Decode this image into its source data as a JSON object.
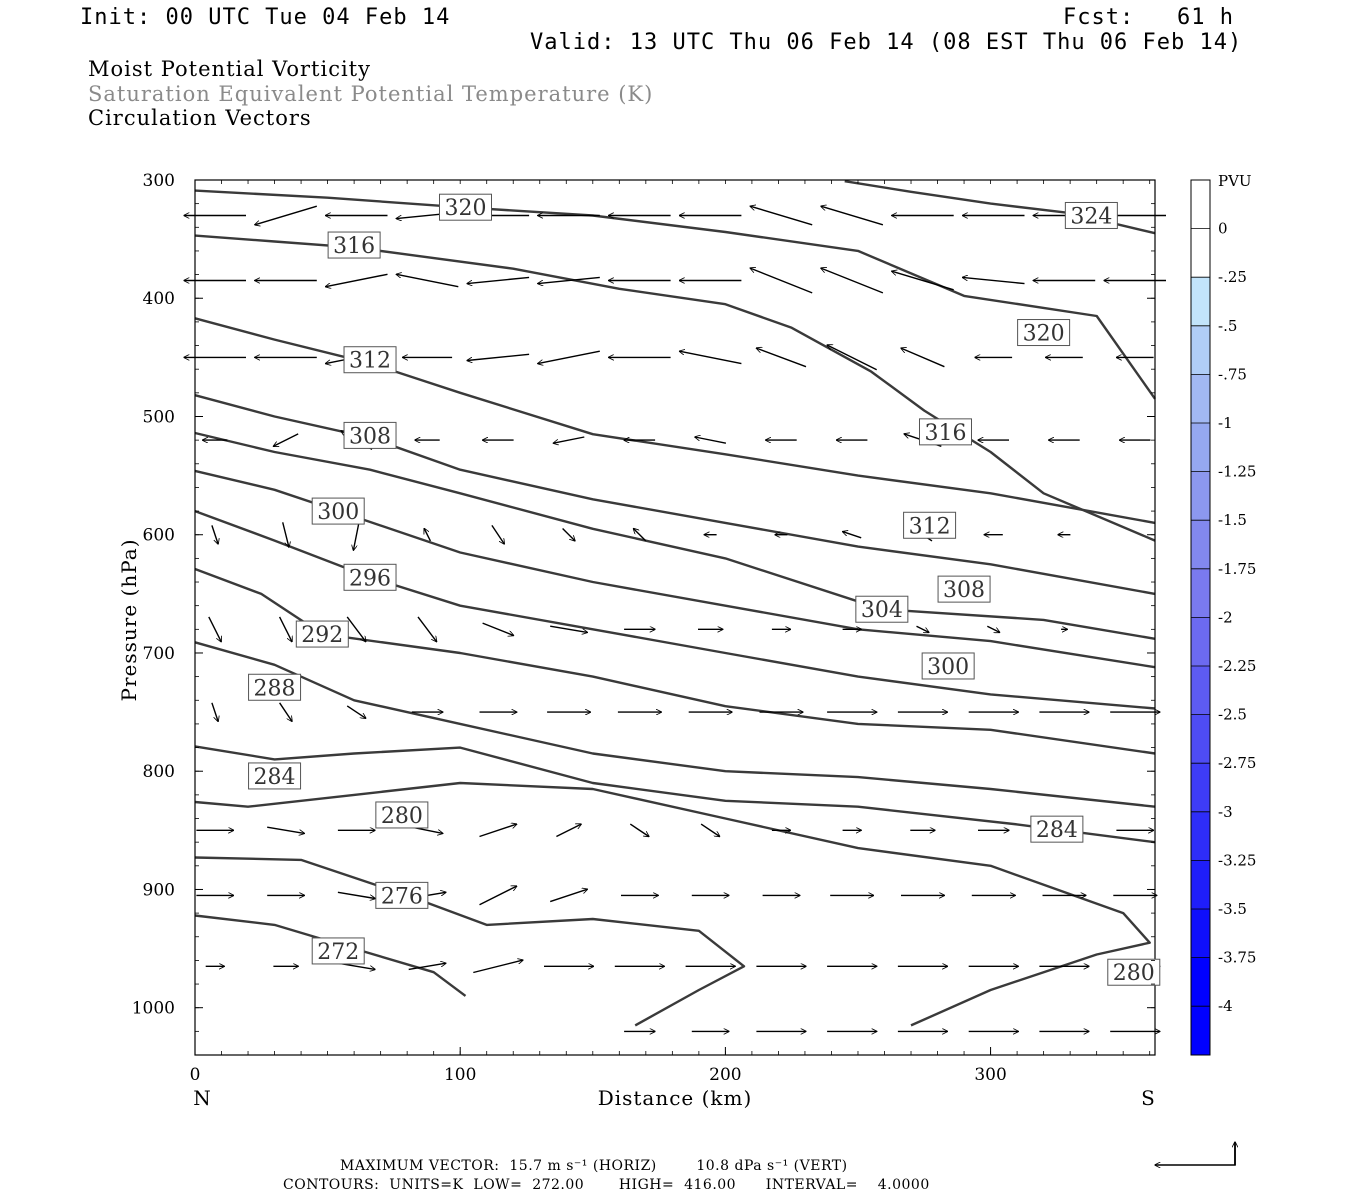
{
  "header": {
    "init": "Init: 00 UTC Tue 04 Feb 14",
    "fcst": "Fcst:   61 h",
    "valid": "Valid: 13 UTC Thu 06 Feb 14 (08 EST Thu 06 Feb 14)",
    "fields": [
      "Moist Potential Vorticity",
      "Saturation Equivalent Potential Temperature (K)",
      "Circulation Vectors"
    ]
  },
  "footer": {
    "max_vector": "MAXIMUM VECTOR:  15.7 m s⁻¹ (HORIZ)        10.8 dPa s⁻¹ (VERT)",
    "contours": "CONTOURS:  UNITS=K  LOW=  272.00       HIGH=  416.00      INTERVAL=    4.0000"
  },
  "colors": {
    "contour": "#3a3a3a",
    "colorbar": [
      "#ffffff",
      "#ffffff",
      "#c2e4fb",
      "#b0cdf7",
      "#a2b8f3",
      "#95a8f0",
      "#8c98ef",
      "#8288ee",
      "#7a7aef",
      "#6c6af0",
      "#5d5bf2",
      "#4e4cf4",
      "#3e3cf6",
      "#2e2df8",
      "#1f1efa",
      "#0f0ffc",
      "#0000ff"
    ]
  },
  "chart_data": {
    "type": "contour",
    "xlabel": "Distance (km)",
    "ylabel": "Pressure (hPa)",
    "x_ticks": [
      "0",
      "100",
      "200",
      "300"
    ],
    "x_tick_values": [
      0,
      100,
      200,
      300
    ],
    "xlim": [
      0,
      362
    ],
    "y_ticks": [
      "300",
      "400",
      "500",
      "600",
      "700",
      "800",
      "900",
      "1000"
    ],
    "y_tick_values": [
      300,
      400,
      500,
      600,
      700,
      800,
      900,
      1000
    ],
    "ylim": [
      300,
      1040
    ],
    "left_end_label": "N",
    "right_end_label": "S",
    "colorbar": {
      "unit": "PVU",
      "labels": [
        "0",
        "-.25",
        "-.5",
        "-.75",
        "-1",
        "-1.25",
        "-1.5",
        "-1.75",
        "-2",
        "-2.25",
        "-2.5",
        "-2.75",
        "-3",
        "-3.25",
        "-3.5",
        "-3.75",
        "-4"
      ]
    },
    "contours": [
      {
        "label": "324",
        "label_at": [
          338,
          330
        ],
        "points": [
          [
            245,
            301
          ],
          [
            270,
            310
          ],
          [
            300,
            320
          ],
          [
            330,
            328
          ],
          [
            362,
            345
          ]
        ]
      },
      {
        "label": "320",
        "label_at": [
          102,
          323
        ],
        "points": [
          [
            0,
            309
          ],
          [
            50,
            315
          ],
          [
            100,
            323
          ],
          [
            150,
            330
          ],
          [
            200,
            344
          ],
          [
            250,
            360
          ],
          [
            290,
            398
          ],
          [
            340,
            415
          ],
          [
            362,
            485
          ]
        ]
      },
      {
        "label": "320",
        "label_at": [
          320,
          429
        ],
        "points": []
      },
      {
        "label": "316",
        "label_at": [
          60,
          355
        ],
        "points": [
          [
            0,
            347
          ],
          [
            30,
            352
          ],
          [
            60,
            357
          ],
          [
            120,
            375
          ],
          [
            160,
            392
          ],
          [
            200,
            405
          ],
          [
            225,
            425
          ],
          [
            255,
            462
          ],
          [
            275,
            495
          ],
          [
            300,
            530
          ],
          [
            320,
            565
          ],
          [
            362,
            605
          ]
        ]
      },
      {
        "label": "316",
        "label_at": [
          283,
          513
        ],
        "points": []
      },
      {
        "label": "312",
        "label_at": [
          66,
          452
        ],
        "points": [
          [
            0,
            417
          ],
          [
            30,
            435
          ],
          [
            66,
            455
          ],
          [
            100,
            480
          ],
          [
            150,
            515
          ],
          [
            200,
            532
          ],
          [
            250,
            550
          ],
          [
            300,
            565
          ],
          [
            362,
            590
          ]
        ]
      },
      {
        "label": "312",
        "label_at": [
          277,
          592
        ],
        "points": []
      },
      {
        "label": "308",
        "label_at": [
          66,
          516
        ],
        "points": [
          [
            0,
            482
          ],
          [
            30,
            500
          ],
          [
            66,
            518
          ],
          [
            100,
            545
          ],
          [
            150,
            570
          ],
          [
            200,
            590
          ],
          [
            250,
            610
          ],
          [
            300,
            625
          ],
          [
            362,
            650
          ]
        ]
      },
      {
        "label": "308",
        "label_at": [
          290,
          646
        ],
        "points": []
      },
      {
        "label": "304",
        "label_at": [
          259,
          663
        ],
        "points": [
          [
            0,
            514
          ],
          [
            30,
            530
          ],
          [
            66,
            545
          ],
          [
            100,
            565
          ],
          [
            150,
            595
          ],
          [
            200,
            620
          ],
          [
            259,
            663
          ],
          [
            320,
            672
          ],
          [
            362,
            688
          ]
        ]
      },
      {
        "label": "300",
        "label_at": [
          54,
          580
        ],
        "points": [
          [
            0,
            546
          ],
          [
            30,
            562
          ],
          [
            54,
            580
          ],
          [
            100,
            615
          ],
          [
            150,
            640
          ],
          [
            200,
            660
          ],
          [
            250,
            680
          ],
          [
            300,
            690
          ],
          [
            362,
            712
          ]
        ]
      },
      {
        "label": "300",
        "label_at": [
          284,
          711
        ],
        "points": []
      },
      {
        "label": "296",
        "label_at": [
          66,
          636
        ],
        "points": [
          [
            0,
            580
          ],
          [
            30,
            605
          ],
          [
            66,
            636
          ],
          [
            100,
            660
          ],
          [
            150,
            680
          ],
          [
            200,
            700
          ],
          [
            250,
            720
          ],
          [
            300,
            735
          ],
          [
            362,
            747
          ]
        ]
      },
      {
        "label": "292",
        "label_at": [
          48,
          684
        ],
        "points": [
          [
            0,
            629
          ],
          [
            25,
            650
          ],
          [
            48,
            684
          ],
          [
            100,
            700
          ],
          [
            150,
            720
          ],
          [
            200,
            745
          ],
          [
            250,
            760
          ],
          [
            300,
            765
          ],
          [
            362,
            785
          ]
        ]
      },
      {
        "label": "288",
        "label_at": [
          30,
          729
        ],
        "points": [
          [
            0,
            691
          ],
          [
            30,
            710
          ],
          [
            60,
            740
          ],
          [
            100,
            760
          ],
          [
            150,
            785
          ],
          [
            200,
            800
          ],
          [
            250,
            805
          ],
          [
            300,
            815
          ],
          [
            362,
            830
          ]
        ]
      },
      {
        "label": "284",
        "label_at": [
          30,
          804
        ],
        "points": [
          [
            0,
            779
          ],
          [
            30,
            790
          ],
          [
            60,
            785
          ],
          [
            100,
            780
          ],
          [
            150,
            810
          ],
          [
            200,
            825
          ],
          [
            250,
            830
          ],
          [
            310,
            845
          ],
          [
            362,
            860
          ]
        ]
      },
      {
        "label": "284",
        "label_at": [
          325,
          849
        ],
        "points": []
      },
      {
        "label": "280",
        "label_at": [
          78,
          837
        ],
        "points": [
          [
            0,
            826
          ],
          [
            20,
            830
          ],
          [
            60,
            820
          ],
          [
            100,
            810
          ],
          [
            150,
            815
          ],
          [
            200,
            840
          ],
          [
            250,
            865
          ],
          [
            300,
            880
          ],
          [
            350,
            920
          ],
          [
            360,
            945
          ],
          [
            340,
            955
          ],
          [
            300,
            985
          ],
          [
            270,
            1015
          ]
        ]
      },
      {
        "label": "280",
        "label_at": [
          354,
          970
        ],
        "points": []
      },
      {
        "label": "276",
        "label_at": [
          78,
          905
        ],
        "points": [
          [
            0,
            873
          ],
          [
            40,
            875
          ],
          [
            80,
            905
          ],
          [
            110,
            930
          ],
          [
            150,
            925
          ],
          [
            190,
            935
          ],
          [
            207,
            965
          ],
          [
            190,
            985
          ],
          [
            166,
            1015
          ]
        ]
      },
      {
        "label": "272",
        "label_at": [
          54,
          952
        ],
        "points": [
          [
            0,
            922
          ],
          [
            30,
            930
          ],
          [
            60,
            950
          ],
          [
            90,
            970
          ],
          [
            102,
            990
          ]
        ]
      }
    ],
    "vector_rows": [
      {
        "pressure": 330,
        "u": [
          -1,
          -1,
          -1,
          -1,
          -1,
          -1,
          -1,
          -1,
          -1,
          -1,
          -1,
          -1,
          -1,
          -1
        ],
        "w": [
          0,
          0.3,
          0,
          0.1,
          0,
          0,
          0,
          0,
          -0.3,
          -0.3,
          0,
          0,
          0,
          0
        ]
      },
      {
        "pressure": 385,
        "u": [
          -1,
          -1,
          -1,
          -1,
          -1,
          -1,
          -1,
          -1,
          -1,
          -1,
          -1,
          -1,
          -1,
          -1
        ],
        "w": [
          0,
          0,
          0.2,
          -0.2,
          0.1,
          0.1,
          0,
          0,
          -0.4,
          -0.4,
          -0.3,
          -0.1,
          0,
          0
        ]
      },
      {
        "pressure": 450,
        "u": [
          -1,
          -1,
          -1,
          -0.8,
          -1,
          -1,
          -1,
          -1,
          -0.8,
          -0.8,
          -0.7,
          -0.6,
          -0.6,
          -0.6
        ],
        "w": [
          0,
          0,
          0.2,
          0,
          0.1,
          0.2,
          0,
          -0.2,
          -0.3,
          -0.4,
          -0.3,
          0,
          0,
          0
        ]
      },
      {
        "pressure": 520,
        "u": [
          -0.4,
          -0.4,
          -0.5,
          -0.4,
          -0.5,
          -0.5,
          -0.5,
          -0.5,
          -0.5,
          -0.5,
          -0.6,
          -0.5,
          -0.5,
          -0.5
        ],
        "w": [
          0,
          0.2,
          -0.3,
          0,
          0,
          0.1,
          0,
          -0.1,
          0,
          0,
          -0.2,
          0,
          0,
          0
        ]
      },
      {
        "pressure": 600,
        "u": [
          0.1,
          0.1,
          -0.1,
          -0.1,
          0.2,
          0.2,
          -0.2,
          -0.2,
          -0.2,
          -0.3,
          -0.3,
          -0.3,
          -0.2,
          0
        ],
        "w": [
          0.3,
          0.4,
          0.5,
          -0.2,
          0.3,
          0.2,
          -0.2,
          0,
          0,
          -0.1,
          -0.2,
          0,
          0,
          0
        ]
      },
      {
        "pressure": 680,
        "u": [
          0.2,
          0.2,
          0.3,
          0.3,
          0.5,
          0.6,
          0.5,
          0.4,
          0.3,
          0.3,
          0.2,
          0.2,
          0.1,
          0
        ],
        "w": [
          0.4,
          0.4,
          0.4,
          0.4,
          0.2,
          0.1,
          0,
          0,
          0,
          0,
          0.1,
          0.1,
          0,
          0
        ]
      },
      {
        "pressure": 750,
        "u": [
          0.1,
          0.2,
          0.3,
          0.5,
          0.6,
          0.7,
          0.7,
          0.7,
          0.7,
          0.8,
          0.8,
          0.8,
          0.8,
          0.8
        ],
        "w": [
          0.3,
          0.3,
          0.2,
          0,
          0,
          0,
          0,
          0,
          0,
          0,
          0,
          0,
          0,
          0
        ]
      },
      {
        "pressure": 850,
        "u": [
          0.6,
          0.6,
          0.6,
          0.5,
          0.6,
          0.4,
          0.3,
          0.3,
          0.3,
          0.3,
          0.4,
          0.5,
          0.5,
          0.6
        ],
        "w": [
          0,
          0.1,
          0,
          0.1,
          -0.2,
          -0.2,
          0.2,
          0.2,
          0,
          0,
          0,
          0,
          0,
          0
        ]
      },
      {
        "pressure": 905,
        "u": [
          0.6,
          0.6,
          0.6,
          0.6,
          0.6,
          0.6,
          0.6,
          0.6,
          0.6,
          0.7,
          0.7,
          0.7,
          0.7,
          0.7
        ],
        "w": [
          0,
          0,
          0.1,
          -0.1,
          -0.3,
          -0.2,
          0,
          0,
          0,
          0,
          0,
          0,
          0,
          0
        ]
      },
      {
        "pressure": 965,
        "u": [
          0.3,
          0.4,
          0.6,
          0.6,
          0.8,
          0.8,
          0.8,
          0.8,
          0.8,
          0.8,
          0.8,
          0.8,
          0.8,
          0.8
        ],
        "w": [
          0,
          0,
          0.1,
          -0.1,
          -0.2,
          0,
          0,
          0,
          0,
          0,
          0,
          0,
          0,
          0
        ]
      },
      {
        "pressure": 1020,
        "u": [
          0,
          0,
          0,
          0,
          0,
          0,
          0.5,
          0.6,
          0.8,
          0.8,
          0.8,
          0.8,
          0.8,
          0.8
        ],
        "w": [
          0,
          0,
          0,
          0,
          0,
          0,
          0,
          0,
          0,
          0,
          0,
          0,
          0,
          0
        ]
      }
    ]
  }
}
